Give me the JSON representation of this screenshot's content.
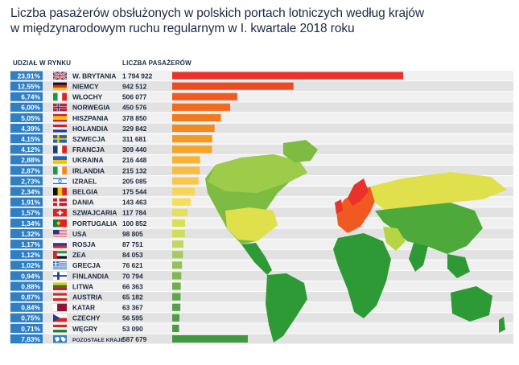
{
  "title_line1": "Liczba pasażerów obsłużonych w polskich portach lotniczych według krajów",
  "title_line2": "w międzynarodowym ruchu regularnym w I. kwartale 2018 roku",
  "header_share": "UDZIAŁ W RYNKU",
  "header_count": "LICZBA PASAŻERÓW",
  "chart_data": {
    "type": "bar",
    "orientation": "horizontal",
    "categories": [
      "W. BRYTANIA",
      "NIEMCY",
      "WŁOCHY",
      "NORWEGIA",
      "HISZPANIA",
      "HOLANDIA",
      "SZWECJA",
      "FRANCJA",
      "UKRAINA",
      "IRLANDIA",
      "IZRAEL",
      "BELGIA",
      "DANIA",
      "SZWAJCARIA",
      "PORTUGALIA",
      "USA",
      "ROSJA",
      "ZEA",
      "GRECJA",
      "FINLANDIA",
      "LITWA",
      "AUSTRIA",
      "KATAR",
      "CZECHY",
      "WĘGRY",
      "POZOSTAŁE KRAJE"
    ],
    "values": [
      1794922,
      942512,
      506077,
      450576,
      378850,
      329842,
      311681,
      309440,
      216448,
      215132,
      205085,
      175544,
      143463,
      117784,
      100852,
      98805,
      87751,
      84053,
      76621,
      70794,
      66363,
      65182,
      63367,
      56595,
      53090,
      587679
    ],
    "value_labels": [
      "1 794 922",
      "942 512",
      "506 077",
      "450 576",
      "378 850",
      "329 842",
      "311 681",
      "309 440",
      "216 448",
      "215 132",
      "205 085",
      "175 544",
      "143 463",
      "117 784",
      "100 852",
      "98 805",
      "87 751",
      "84 053",
      "76 621",
      "70 794",
      "66 363",
      "65 182",
      "63 367",
      "56 595",
      "53 090",
      "587 679"
    ],
    "shares": [
      "23,91%",
      "12,55%",
      "6,74%",
      "6,00%",
      "5,05%",
      "4,39%",
      "4,15%",
      "4,12%",
      "2,88%",
      "2,87%",
      "2,73%",
      "2,34%",
      "1,91%",
      "1,57%",
      "1,34%",
      "1,32%",
      "1,17%",
      "1,12%",
      "1,02%",
      "0,94%",
      "0,88%",
      "0,87%",
      "0,84%",
      "0,75%",
      "0,71%",
      "7,83%"
    ],
    "bar_colors": [
      "#e8322a",
      "#ee4a22",
      "#f05a20",
      "#f06a1f",
      "#f27a1e",
      "#f3891f",
      "#f59a20",
      "#f6a52a",
      "#f7b335",
      "#f8bc40",
      "#f9c64e",
      "#fad45a",
      "#f7de5a",
      "#e8e050",
      "#dbe053",
      "#cfdd5c",
      "#c0d862",
      "#a8cc5c",
      "#93c257",
      "#7fb94f",
      "#6cb04a",
      "#5ea846",
      "#54a146",
      "#4e9d44",
      "#4a9a42",
      "#3e9a3c"
    ],
    "axis_min": 0,
    "axis_max": 1794922,
    "grid": false
  },
  "colors": {
    "row_band_light": "#f0f0f0",
    "row_band_dark": "#e2e2e2",
    "share_box": "#2e7fc4",
    "text": "#1b2a44",
    "world_map_greens": [
      "#2e9a35",
      "#4daa3a",
      "#7dbb42",
      "#b7d444",
      "#dfe04b"
    ]
  },
  "flags": [
    "uk-flag",
    "germany-flag",
    "italy-flag",
    "norway-flag",
    "spain-flag",
    "netherlands-flag",
    "sweden-flag",
    "france-flag",
    "ukraine-flag",
    "ireland-flag",
    "israel-flag",
    "belgium-flag",
    "denmark-flag",
    "switzerland-flag",
    "portugal-flag",
    "usa-flag",
    "russia-flag",
    "uae-flag",
    "greece-flag",
    "finland-flag",
    "lithuania-flag",
    "austria-flag",
    "qatar-flag",
    "czech-flag",
    "hungary-flag",
    "world-flag"
  ]
}
